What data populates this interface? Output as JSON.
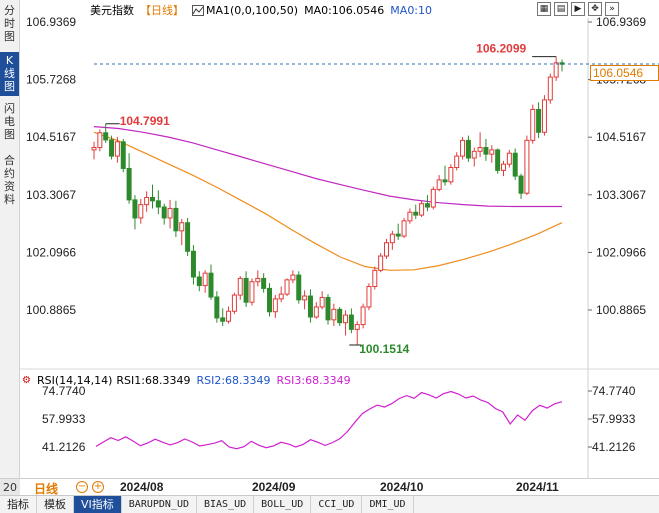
{
  "side_tabs": [
    {
      "label": "分时图",
      "active": false
    },
    {
      "label": "K线图",
      "active": true
    },
    {
      "label": "闪电图",
      "active": false
    },
    {
      "label": "合约资料",
      "active": false
    }
  ],
  "header": {
    "title": "美元指数",
    "period": "【日线】",
    "ma1": "MA1(0,0,100,50)",
    "ma0": "MA0:106.0546",
    "ma0b": "MA0:10",
    "toolbar_icons": [
      "grid-icon",
      "chart-icon",
      "play-icon",
      "move-icon",
      "more-icon"
    ]
  },
  "price_axis": [
    "106.9369",
    "105.7268",
    "104.5167",
    "103.3067",
    "102.0966",
    "100.8865"
  ],
  "annotations": {
    "high_mark": "106.2099",
    "left_high": "104.7991",
    "low_mark": "100.1514",
    "last_price": "106.0546"
  },
  "rsi": {
    "title": "RSI(14,14,14)",
    "rsi1": "RSI1:68.3349",
    "rsi2": "RSI2:68.3349",
    "rsi3": "RSI3:68.3349",
    "axis": [
      "74.7740",
      "57.9933",
      "41.2126"
    ]
  },
  "period_row": {
    "count": "20",
    "label": "日线",
    "zoom_out": "−",
    "zoom_in": "+",
    "x_labels": [
      "2024/08",
      "2024/09",
      "2024/10",
      "2024/11"
    ]
  },
  "bottom_tabs": [
    {
      "label": "指标",
      "active": false,
      "mono": false
    },
    {
      "label": "模板",
      "active": false,
      "mono": false
    },
    {
      "label": "VI指标",
      "active": true,
      "mono": false
    },
    {
      "label": "BARUPDN_UD",
      "active": false,
      "mono": true
    },
    {
      "label": "BIAS_UD",
      "active": false,
      "mono": true
    },
    {
      "label": "BOLL_UD",
      "active": false,
      "mono": true
    },
    {
      "label": "CCI_UD",
      "active": false,
      "mono": true
    },
    {
      "label": "DMI_UD",
      "active": false,
      "mono": true
    }
  ],
  "colors": {
    "up": "#e23b3b",
    "down": "#2c8a2c",
    "ma_slow": "#c028c0",
    "ma_fast": "#f08c1c",
    "rsi_line": "#d020d0",
    "price_line": "#2a6fb5",
    "accent_blue": "#1f4e9b",
    "accent_orange": "#e07b00"
  },
  "candles": [
    [
      104.25,
      104.42,
      104.05,
      104.3
    ],
    [
      104.3,
      104.68,
      104.22,
      104.61
    ],
    [
      104.61,
      104.8,
      104.4,
      104.46
    ],
    [
      104.46,
      104.55,
      104.05,
      104.12
    ],
    [
      104.12,
      104.52,
      103.98,
      104.42
    ],
    [
      104.42,
      104.48,
      103.78,
      103.86
    ],
    [
      103.86,
      104.18,
      103.12,
      103.2
    ],
    [
      103.2,
      103.3,
      102.58,
      102.82
    ],
    [
      102.82,
      103.22,
      102.7,
      103.1
    ],
    [
      103.1,
      103.38,
      102.95,
      103.25
    ],
    [
      103.25,
      103.52,
      103.02,
      103.18
    ],
    [
      103.18,
      103.4,
      102.9,
      103.05
    ],
    [
      103.05,
      103.12,
      102.68,
      102.82
    ],
    [
      102.82,
      103.2,
      102.6,
      103.02
    ],
    [
      103.02,
      103.18,
      102.42,
      102.55
    ],
    [
      102.55,
      102.8,
      102.25,
      102.72
    ],
    [
      102.72,
      102.82,
      102.02,
      102.12
    ],
    [
      102.12,
      102.25,
      101.42,
      101.58
    ],
    [
      101.58,
      101.7,
      101.28,
      101.4
    ],
    [
      101.4,
      101.72,
      101.25,
      101.66
    ],
    [
      101.66,
      101.84,
      101.1,
      101.16
    ],
    [
      101.16,
      101.28,
      100.62,
      100.72
    ],
    [
      100.72,
      100.92,
      100.55,
      100.65
    ],
    [
      100.65,
      100.96,
      100.6,
      100.86
    ],
    [
      100.86,
      101.25,
      100.8,
      101.2
    ],
    [
      101.2,
      101.6,
      101.1,
      101.55
    ],
    [
      101.55,
      101.7,
      100.95,
      101.05
    ],
    [
      101.05,
      101.55,
      100.98,
      101.48
    ],
    [
      101.48,
      101.72,
      101.38,
      101.55
    ],
    [
      101.55,
      101.66,
      101.25,
      101.34
    ],
    [
      101.34,
      101.45,
      100.75,
      100.85
    ],
    [
      100.85,
      101.2,
      100.72,
      101.12
    ],
    [
      101.12,
      101.38,
      101.05,
      101.22
    ],
    [
      101.22,
      101.55,
      101.18,
      101.52
    ],
    [
      101.52,
      101.72,
      101.45,
      101.62
    ],
    [
      101.62,
      101.7,
      101.02,
      101.1
    ],
    [
      101.1,
      101.3,
      100.9,
      101.18
    ],
    [
      101.18,
      101.32,
      100.62,
      100.74
    ],
    [
      100.74,
      101.05,
      100.7,
      100.95
    ],
    [
      100.95,
      101.28,
      100.9,
      101.15
    ],
    [
      101.15,
      101.22,
      100.58,
      100.68
    ],
    [
      100.68,
      101.02,
      100.55,
      100.9
    ],
    [
      100.9,
      100.95,
      100.55,
      100.62
    ],
    [
      100.62,
      100.88,
      100.35,
      100.78
    ],
    [
      100.78,
      100.92,
      100.4,
      100.48
    ],
    [
      100.48,
      100.65,
      100.15,
      100.58
    ],
    [
      100.58,
      101.02,
      100.5,
      100.95
    ],
    [
      100.95,
      101.45,
      100.88,
      101.38
    ],
    [
      101.38,
      101.8,
      101.32,
      101.72
    ],
    [
      101.72,
      102.08,
      101.68,
      102.02
    ],
    [
      102.02,
      102.38,
      101.96,
      102.3
    ],
    [
      102.3,
      102.55,
      102.15,
      102.48
    ],
    [
      102.48,
      102.7,
      102.36,
      102.44
    ],
    [
      102.44,
      102.82,
      102.4,
      102.76
    ],
    [
      102.76,
      103.02,
      102.7,
      102.94
    ],
    [
      102.94,
      103.1,
      102.8,
      102.88
    ],
    [
      102.88,
      103.18,
      102.84,
      103.12
    ],
    [
      103.12,
      103.3,
      102.96,
      103.05
    ],
    [
      103.05,
      103.48,
      103.0,
      103.42
    ],
    [
      103.42,
      103.72,
      103.38,
      103.62
    ],
    [
      103.62,
      103.92,
      103.5,
      103.58
    ],
    [
      103.58,
      103.95,
      103.52,
      103.88
    ],
    [
      103.88,
      104.2,
      103.82,
      104.12
    ],
    [
      104.12,
      104.52,
      104.05,
      104.45
    ],
    [
      104.45,
      104.55,
      104.0,
      104.08
    ],
    [
      104.08,
      104.3,
      103.9,
      104.22
    ],
    [
      104.22,
      104.62,
      104.1,
      104.3
    ],
    [
      104.3,
      104.48,
      104.02,
      104.16
    ],
    [
      104.16,
      104.35,
      103.98,
      104.25
    ],
    [
      104.25,
      104.28,
      103.75,
      103.82
    ],
    [
      103.82,
      104.02,
      103.7,
      103.95
    ],
    [
      103.95,
      104.25,
      103.88,
      104.18
    ],
    [
      104.18,
      104.28,
      103.62,
      103.7
    ],
    [
      103.7,
      103.75,
      103.22,
      103.34
    ],
    [
      103.34,
      104.55,
      103.3,
      104.45
    ],
    [
      104.45,
      105.2,
      104.38,
      105.1
    ],
    [
      105.1,
      105.25,
      104.5,
      104.62
    ],
    [
      104.62,
      105.4,
      104.55,
      105.3
    ],
    [
      105.3,
      105.85,
      105.22,
      105.78
    ],
    [
      105.78,
      106.21,
      105.7,
      106.08
    ],
    [
      106.08,
      106.15,
      105.9,
      106.05
    ]
  ],
  "ma_fast_series": [
    104.62,
    104.44,
    104.2,
    103.96,
    103.72,
    103.46,
    103.18,
    102.9,
    102.58,
    102.28,
    102.0,
    101.8,
    101.72,
    101.73,
    101.82,
    101.95,
    102.1,
    102.28,
    102.48,
    102.72
  ],
  "ma_slow_series": [
    104.74,
    104.7,
    104.62,
    104.52,
    104.4,
    104.25,
    104.1,
    103.95,
    103.8,
    103.65,
    103.52,
    103.4,
    103.28,
    103.2,
    103.14,
    103.1,
    103.07,
    103.06,
    103.06,
    103.06
  ],
  "rsi_series": [
    41.5,
    44.2,
    46.8,
    45.1,
    47.3,
    44.8,
    42.0,
    43.6,
    45.9,
    44.1,
    42.5,
    43.8,
    46.0,
    44.2,
    41.8,
    42.6,
    43.5,
    45.0,
    41.3,
    40.2,
    41.4,
    44.6,
    42.3,
    40.8,
    41.9,
    44.0,
    43.1,
    41.2,
    42.8,
    45.6,
    44.0,
    42.2,
    43.9,
    46.3,
    50.5,
    56.0,
    61.2,
    64.0,
    66.3,
    65.1,
    67.2,
    70.3,
    72.0,
    70.4,
    73.8,
    72.5,
    70.6,
    73.2,
    74.5,
    73.0,
    70.6,
    71.8,
    69.4,
    67.8,
    64.3,
    62.2,
    55.0,
    60.4,
    57.3,
    63.0,
    66.2,
    64.5,
    67.1,
    68.3
  ]
}
